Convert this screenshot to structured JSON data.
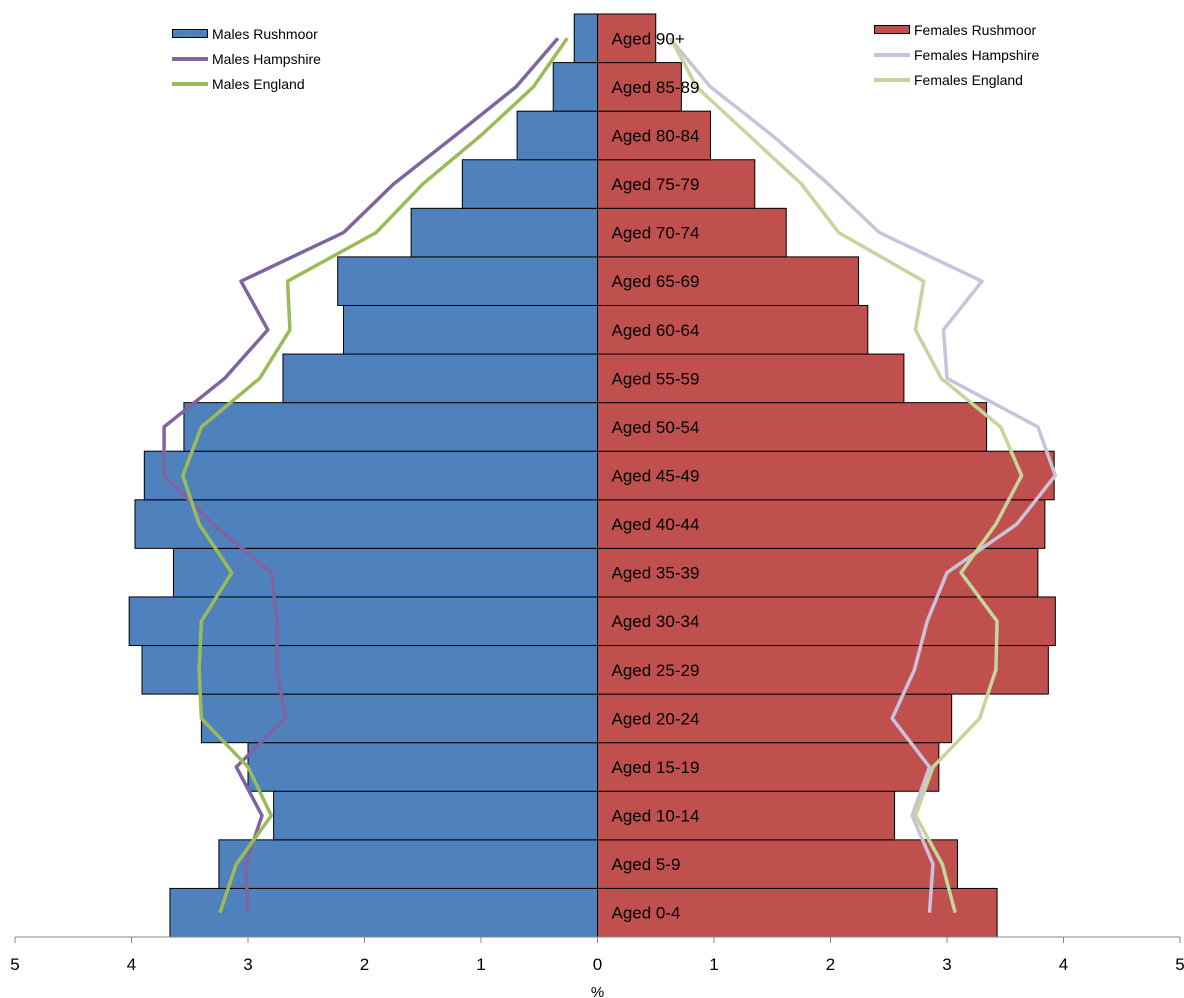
{
  "chart_data": {
    "type": "bar",
    "orientation": "horizontal",
    "layout": "population-pyramid",
    "categories": [
      "Aged 0-4",
      "Aged 5-9",
      "Aged 10-14",
      "Aged 15-19",
      "Aged 20-24",
      "Aged 25-29",
      "Aged 30-34",
      "Aged 35-39",
      "Aged 40-44",
      "Aged 45-49",
      "Aged 50-54",
      "Aged 55-59",
      "Aged 60-64",
      "Aged 65-69",
      "Aged 70-74",
      "Aged 75-79",
      "Aged 80-84",
      "Aged 85-89",
      "Aged 90+"
    ],
    "bar_series": [
      {
        "name": "Males Rushmoor",
        "side": "left",
        "color": "#4f81bd",
        "values": [
          3.67,
          3.25,
          2.78,
          3.0,
          3.4,
          3.91,
          4.02,
          3.64,
          3.97,
          3.89,
          3.55,
          2.7,
          2.18,
          2.23,
          1.6,
          1.16,
          0.69,
          0.38,
          0.2
        ]
      },
      {
        "name": "Females Rushmoor",
        "side": "right",
        "color": "#c0504d",
        "values": [
          3.43,
          3.09,
          2.55,
          2.93,
          3.04,
          3.87,
          3.93,
          3.78,
          3.84,
          3.92,
          3.34,
          2.63,
          2.32,
          2.24,
          1.62,
          1.35,
          0.97,
          0.72,
          0.5
        ]
      }
    ],
    "line_series": [
      {
        "name": "Males Hampshire",
        "side": "left",
        "color": "#8064a2",
        "values": [
          3.0,
          3.02,
          2.88,
          3.1,
          2.68,
          2.75,
          2.75,
          2.8,
          3.3,
          3.72,
          3.72,
          3.2,
          2.83,
          3.06,
          2.18,
          1.75,
          1.22,
          0.7,
          0.34
        ]
      },
      {
        "name": "Males England",
        "side": "left",
        "color": "#9bbb59",
        "values": [
          3.24,
          3.1,
          2.8,
          3.0,
          3.4,
          3.42,
          3.4,
          3.14,
          3.42,
          3.56,
          3.4,
          2.9,
          2.64,
          2.66,
          1.9,
          1.5,
          1.0,
          0.55,
          0.26
        ]
      },
      {
        "name": "Females Hampshire",
        "side": "right",
        "color": "#ccc1da",
        "values": [
          2.85,
          2.88,
          2.7,
          2.85,
          2.53,
          2.72,
          2.83,
          3.0,
          3.6,
          3.93,
          3.78,
          3.0,
          2.97,
          3.3,
          2.42,
          1.98,
          1.5,
          0.97,
          0.62
        ]
      },
      {
        "name": "Females England",
        "side": "right",
        "color": "#c3d69b",
        "values": [
          3.07,
          2.96,
          2.73,
          2.88,
          3.28,
          3.42,
          3.43,
          3.12,
          3.42,
          3.64,
          3.46,
          2.95,
          2.73,
          2.8,
          2.07,
          1.75,
          1.3,
          0.85,
          0.63
        ]
      }
    ],
    "xlabel": "%",
    "xlim": [
      -5,
      5
    ],
    "x_ticks": [
      "5",
      "4",
      "3",
      "2",
      "1",
      "0",
      "1",
      "2",
      "3",
      "4",
      "5"
    ],
    "grid": false,
    "legend_placement": "top-left and top-right"
  }
}
